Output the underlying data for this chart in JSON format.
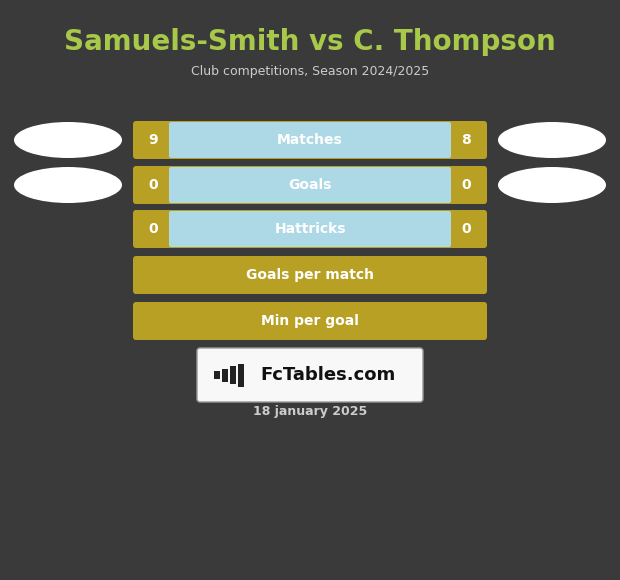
{
  "title": "Samuels-Smith vs C. Thompson",
  "subtitle": "Club competitions, Season 2024/2025",
  "title_color": "#a8c84a",
  "subtitle_color": "#cccccc",
  "background_color": "#3a3a3a",
  "date_text": "18 january 2025",
  "date_color": "#cccccc",
  "watermark_text": "FcTables.com",
  "rows": [
    {
      "label": "Matches",
      "val_left": "9",
      "val_right": "8",
      "has_values": true,
      "fill_center": "#add8e6"
    },
    {
      "label": "Goals",
      "val_left": "0",
      "val_right": "0",
      "has_values": true,
      "fill_center": "#add8e6"
    },
    {
      "label": "Hattricks",
      "val_left": "0",
      "val_right": "0",
      "has_values": true,
      "fill_center": "#add8e6"
    },
    {
      "label": "Goals per match",
      "val_left": "",
      "val_right": "",
      "has_values": false,
      "fill_center": "#b8a025"
    },
    {
      "label": "Min per goal",
      "val_left": "",
      "val_right": "",
      "has_values": false,
      "fill_center": "#b8a025"
    }
  ],
  "gold_color": "#b8a025",
  "label_color": "#ffffff",
  "value_color": "#ffffff",
  "oval_color": "#ffffff",
  "title_fontsize": 20,
  "subtitle_fontsize": 9,
  "row_label_fontsize": 10,
  "row_val_fontsize": 10,
  "date_fontsize": 9
}
